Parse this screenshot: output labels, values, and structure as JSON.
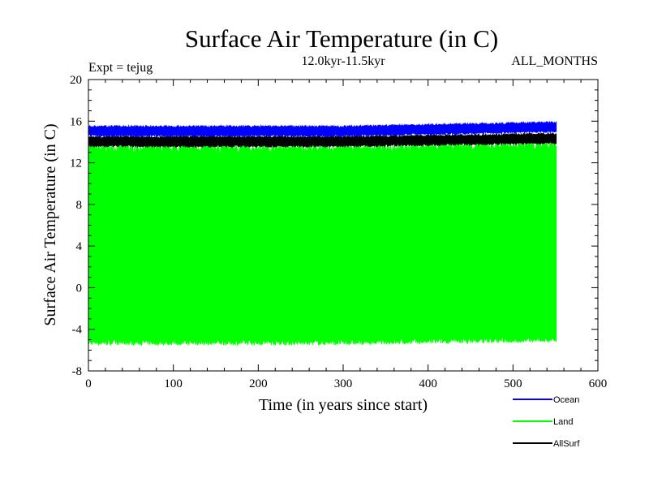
{
  "chart_data": {
    "type": "line",
    "title": "Surface Air Temperature (in C)",
    "subtitle_left": "Expt = tejug",
    "subtitle_center": "12.0kyr-11.5kyr",
    "subtitle_right": "ALL_MONTHS",
    "xlabel": "Time (in years since start)",
    "ylabel": "Surface Air Temperature (in C)",
    "xlim": [
      0,
      600
    ],
    "ylim": [
      -8,
      20
    ],
    "xticks": [
      0,
      100,
      200,
      300,
      400,
      500,
      600
    ],
    "yticks": [
      -8,
      -4,
      0,
      4,
      8,
      12,
      16,
      20
    ],
    "x_end": 551,
    "grid": false,
    "legend_position": "bottom-right",
    "series": [
      {
        "name": "Land",
        "color": "#00ff00",
        "monthly_min": -5.3,
        "monthly_max": 13.5,
        "trend_end": 0.3
      },
      {
        "name": "AllSurf",
        "color": "#000000",
        "monthly_min": 13.6,
        "monthly_max": 14.5,
        "trend_end": 0.3
      },
      {
        "name": "Ocean",
        "color": "#0000ff",
        "monthly_min": 14.6,
        "monthly_max": 15.5,
        "trend_end": 0.4
      }
    ],
    "legend": [
      {
        "name": "Ocean",
        "color": "#0000ff"
      },
      {
        "name": "Land",
        "color": "#00ff00"
      },
      {
        "name": "AllSurf",
        "color": "#000000"
      }
    ]
  }
}
